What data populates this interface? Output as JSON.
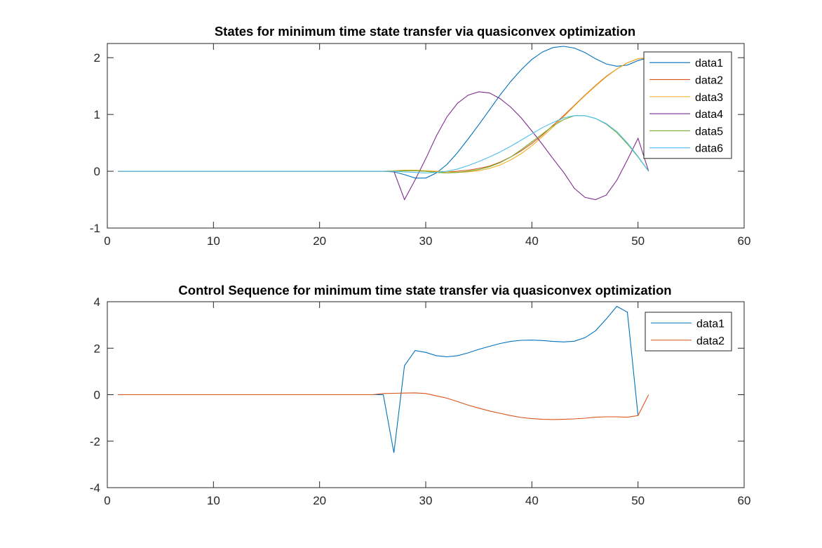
{
  "chart_data": [
    {
      "type": "line",
      "title": "States for minimum time state transfer via quasiconvex optimization",
      "xlim": [
        0,
        60
      ],
      "ylim": [
        -1,
        2.25
      ],
      "xticks": [
        0,
        10,
        20,
        30,
        40,
        50,
        60
      ],
      "yticks": [
        -1,
        0,
        1,
        2
      ],
      "grid": false,
      "legend_position": "top-right",
      "series": [
        {
          "name": "data1",
          "color": "#0072BD",
          "x": [
            1,
            26,
            27,
            28,
            29,
            30,
            31,
            32,
            33,
            34,
            35,
            36,
            37,
            38,
            39,
            40,
            41,
            42,
            43,
            44,
            45,
            46,
            47,
            48,
            49,
            50,
            51
          ],
          "y": [
            0,
            0,
            -0.01,
            -0.06,
            -0.12,
            -0.12,
            -0.03,
            0.12,
            0.33,
            0.57,
            0.82,
            1.08,
            1.34,
            1.58,
            1.79,
            1.97,
            2.1,
            2.18,
            2.2,
            2.17,
            2.09,
            1.98,
            1.89,
            1.85,
            1.87,
            1.95,
            2.0
          ]
        },
        {
          "name": "data2",
          "color": "#D95319",
          "x": [
            1,
            26,
            27,
            28,
            29,
            30,
            31,
            32,
            33,
            34,
            35,
            36,
            37,
            38,
            39,
            40,
            41,
            42,
            43,
            44,
            45,
            46,
            47,
            48,
            49,
            50,
            51
          ],
          "y": [
            0,
            0,
            0,
            0.01,
            0.01,
            0,
            -0.01,
            -0.01,
            0,
            0.02,
            0.05,
            0.09,
            0.16,
            0.25,
            0.36,
            0.49,
            0.64,
            0.81,
            0.98,
            1.16,
            1.34,
            1.51,
            1.67,
            1.8,
            1.91,
            1.98,
            2.0
          ]
        },
        {
          "name": "data3",
          "color": "#EDB120",
          "x": [
            1,
            26,
            27,
            28,
            29,
            30,
            31,
            32,
            33,
            34,
            35,
            36,
            37,
            38,
            39,
            40,
            41,
            42,
            43,
            44,
            45,
            46,
            47,
            48,
            49,
            50,
            51
          ],
          "y": [
            0,
            0,
            0.01,
            0.02,
            0.02,
            0.01,
            0,
            -0.01,
            -0.02,
            -0.01,
            0.01,
            0.05,
            0.11,
            0.2,
            0.31,
            0.45,
            0.61,
            0.78,
            0.96,
            1.15,
            1.33,
            1.5,
            1.66,
            1.8,
            1.91,
            1.98,
            2.0
          ]
        },
        {
          "name": "data4",
          "color": "#7E2F8E",
          "x": [
            1,
            26,
            27,
            28,
            29,
            30,
            31,
            32,
            33,
            34,
            35,
            36,
            37,
            38,
            39,
            40,
            41,
            42,
            43,
            44,
            45,
            46,
            47,
            48,
            49,
            50,
            51
          ],
          "y": [
            0,
            0,
            0,
            -0.5,
            -0.15,
            0.22,
            0.62,
            0.96,
            1.2,
            1.34,
            1.4,
            1.38,
            1.28,
            1.13,
            0.94,
            0.71,
            0.47,
            0.22,
            -0.02,
            -0.3,
            -0.46,
            -0.5,
            -0.42,
            -0.16,
            0.2,
            0.58,
            0.0
          ]
        },
        {
          "name": "data5",
          "color": "#77AC30",
          "x": [
            1,
            26,
            27,
            28,
            29,
            30,
            31,
            32,
            33,
            34,
            35,
            36,
            37,
            38,
            39,
            40,
            41,
            42,
            43,
            44,
            45,
            46,
            47,
            48,
            49,
            50,
            51
          ],
          "y": [
            0,
            0,
            0,
            0.01,
            0.01,
            0,
            -0.02,
            -0.03,
            -0.02,
            0,
            0.03,
            0.08,
            0.15,
            0.25,
            0.38,
            0.52,
            0.66,
            0.8,
            0.91,
            0.98,
            0.98,
            0.93,
            0.83,
            0.68,
            0.48,
            0.25,
            0.0
          ]
        },
        {
          "name": "data6",
          "color": "#4DBEEE",
          "x": [
            1,
            26,
            27,
            28,
            29,
            30,
            31,
            32,
            33,
            34,
            35,
            36,
            37,
            38,
            39,
            40,
            41,
            42,
            43,
            44,
            45,
            46,
            47,
            48,
            49,
            50,
            51
          ],
          "y": [
            0,
            0,
            0,
            -0.01,
            -0.02,
            -0.03,
            -0.02,
            0,
            0.04,
            0.1,
            0.17,
            0.25,
            0.34,
            0.44,
            0.55,
            0.66,
            0.77,
            0.86,
            0.94,
            0.98,
            0.98,
            0.93,
            0.84,
            0.7,
            0.5,
            0.26,
            0.0
          ]
        }
      ]
    },
    {
      "type": "line",
      "title": "Control Sequence for minimum time state transfer via quasiconvex optimization",
      "xlim": [
        0,
        60
      ],
      "ylim": [
        -4,
        4
      ],
      "xticks": [
        0,
        10,
        20,
        30,
        40,
        50,
        60
      ],
      "yticks": [
        -4,
        -2,
        0,
        2,
        4
      ],
      "grid": false,
      "legend_position": "top-right",
      "series": [
        {
          "name": "data1",
          "color": "#0072BD",
          "x": [
            1,
            26,
            27,
            28,
            29,
            30,
            31,
            32,
            33,
            34,
            35,
            36,
            37,
            38,
            39,
            40,
            41,
            42,
            43,
            44,
            45,
            46,
            47,
            48,
            49,
            50
          ],
          "y": [
            0,
            0,
            -2.5,
            1.25,
            1.9,
            1.82,
            1.68,
            1.63,
            1.68,
            1.8,
            1.95,
            2.08,
            2.2,
            2.29,
            2.34,
            2.35,
            2.33,
            2.29,
            2.27,
            2.3,
            2.45,
            2.75,
            3.25,
            3.8,
            3.55,
            -0.9
          ]
        },
        {
          "name": "data2",
          "color": "#D95319",
          "x": [
            1,
            25,
            26,
            27,
            28,
            29,
            30,
            31,
            32,
            33,
            34,
            35,
            36,
            37,
            38,
            39,
            40,
            41,
            42,
            43,
            44,
            45,
            46,
            47,
            48,
            49,
            50,
            51
          ],
          "y": [
            0,
            0,
            0.05,
            0.06,
            0.07,
            0.08,
            0.05,
            -0.05,
            -0.15,
            -0.3,
            -0.45,
            -0.58,
            -0.7,
            -0.8,
            -0.9,
            -0.98,
            -1.03,
            -1.06,
            -1.07,
            -1.06,
            -1.04,
            -1.01,
            -0.97,
            -0.95,
            -0.95,
            -0.97,
            -0.9,
            0.0
          ]
        }
      ]
    }
  ]
}
